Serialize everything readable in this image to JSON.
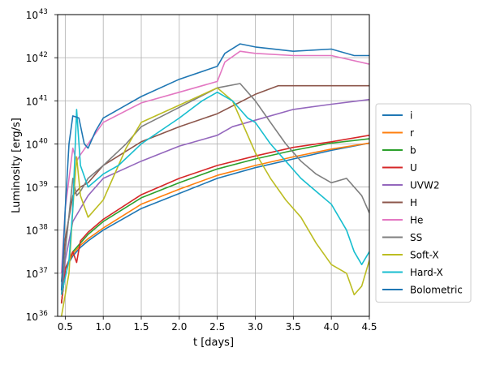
{
  "chart_data": {
    "type": "line",
    "title": "",
    "xlabel": "t [days]",
    "ylabel": "Luminosity [erg/s]",
    "xlim": [
      0.4,
      4.5
    ],
    "ylim_log10": [
      36,
      43
    ],
    "yscale": "log",
    "grid": true,
    "legend_position": "outside-right",
    "x_ticks": [
      {
        "value": 0.5,
        "label": "0.5"
      },
      {
        "value": 1.0,
        "label": "1.0"
      },
      {
        "value": 1.5,
        "label": "1.5"
      },
      {
        "value": 2.0,
        "label": "2.0"
      },
      {
        "value": 2.5,
        "label": "2.5"
      },
      {
        "value": 3.0,
        "label": "3.0"
      },
      {
        "value": 3.5,
        "label": "3.5"
      },
      {
        "value": 4.0,
        "label": "4.0"
      },
      {
        "value": 4.5,
        "label": "4.5"
      }
    ],
    "y_ticks": [
      {
        "exp": 36,
        "base": "10",
        "sup": "36"
      },
      {
        "exp": 37,
        "base": "10",
        "sup": "37"
      },
      {
        "exp": 38,
        "base": "10",
        "sup": "38"
      },
      {
        "exp": 39,
        "base": "10",
        "sup": "39"
      },
      {
        "exp": 40,
        "base": "10",
        "sup": "40"
      },
      {
        "exp": 41,
        "base": "10",
        "sup": "41"
      },
      {
        "exp": 42,
        "base": "10",
        "sup": "42"
      },
      {
        "exp": 43,
        "base": "10",
        "sup": "43"
      }
    ],
    "series": [
      {
        "name": "i",
        "color": "#1f77b4",
        "points": [
          [
            0.45,
            36.3
          ],
          [
            0.5,
            37.1
          ],
          [
            0.6,
            37.4
          ],
          [
            0.7,
            37.6
          ],
          [
            0.8,
            37.75
          ],
          [
            1.0,
            38.0
          ],
          [
            1.5,
            38.5
          ],
          [
            2.0,
            38.85
          ],
          [
            2.5,
            39.2
          ],
          [
            3.0,
            39.45
          ],
          [
            3.5,
            39.65
          ],
          [
            4.0,
            39.85
          ],
          [
            4.5,
            40.02
          ]
        ]
      },
      {
        "name": "r",
        "color": "#ff7f0e",
        "points": [
          [
            0.45,
            36.3
          ],
          [
            0.5,
            37.1
          ],
          [
            0.6,
            37.45
          ],
          [
            0.7,
            37.65
          ],
          [
            0.8,
            37.8
          ],
          [
            1.0,
            38.05
          ],
          [
            1.5,
            38.6
          ],
          [
            2.0,
            38.95
          ],
          [
            2.5,
            39.27
          ],
          [
            3.0,
            39.5
          ],
          [
            3.5,
            39.7
          ],
          [
            4.0,
            39.88
          ],
          [
            4.5,
            40.02
          ]
        ]
      },
      {
        "name": "b",
        "color": "#2ca02c",
        "points": [
          [
            0.45,
            36.3
          ],
          [
            0.5,
            37.1
          ],
          [
            0.6,
            37.5
          ],
          [
            0.7,
            37.7
          ],
          [
            0.8,
            37.9
          ],
          [
            1.0,
            38.2
          ],
          [
            1.5,
            38.75
          ],
          [
            2.0,
            39.1
          ],
          [
            2.5,
            39.42
          ],
          [
            3.0,
            39.65
          ],
          [
            3.5,
            39.85
          ],
          [
            4.0,
            40.02
          ],
          [
            4.5,
            40.12
          ]
        ]
      },
      {
        "name": "U",
        "color": "#d62728",
        "points": [
          [
            0.45,
            36.3
          ],
          [
            0.5,
            37.1
          ],
          [
            0.6,
            37.5
          ],
          [
            0.65,
            37.25
          ],
          [
            0.7,
            37.75
          ],
          [
            0.8,
            37.95
          ],
          [
            1.0,
            38.25
          ],
          [
            1.5,
            38.82
          ],
          [
            2.0,
            39.2
          ],
          [
            2.5,
            39.5
          ],
          [
            3.0,
            39.72
          ],
          [
            3.5,
            39.92
          ],
          [
            4.0,
            40.05
          ],
          [
            4.5,
            40.2
          ]
        ]
      },
      {
        "name": "UVW2",
        "color": "#9467bd",
        "points": [
          [
            0.45,
            36.5
          ],
          [
            0.5,
            37.3
          ],
          [
            0.6,
            38.2
          ],
          [
            0.7,
            38.5
          ],
          [
            0.8,
            38.8
          ],
          [
            1.0,
            39.2
          ],
          [
            1.5,
            39.6
          ],
          [
            2.0,
            39.95
          ],
          [
            2.5,
            40.2
          ],
          [
            2.7,
            40.4
          ],
          [
            3.0,
            40.55
          ],
          [
            3.5,
            40.8
          ],
          [
            4.0,
            40.92
          ],
          [
            4.5,
            41.03
          ]
        ]
      },
      {
        "name": "H",
        "color": "#8c564b",
        "points": [
          [
            0.45,
            36.8
          ],
          [
            0.5,
            37.8
          ],
          [
            0.6,
            38.8
          ],
          [
            0.7,
            39.0
          ],
          [
            0.8,
            39.1
          ],
          [
            1.0,
            39.5
          ],
          [
            1.5,
            40.05
          ],
          [
            2.0,
            40.4
          ],
          [
            2.5,
            40.7
          ],
          [
            3.0,
            41.15
          ],
          [
            3.3,
            41.35
          ],
          [
            3.5,
            41.35
          ],
          [
            4.0,
            41.35
          ],
          [
            4.5,
            41.35
          ]
        ]
      },
      {
        "name": "He",
        "color": "#e377c2",
        "points": [
          [
            0.45,
            37.0
          ],
          [
            0.5,
            38.5
          ],
          [
            0.6,
            39.9
          ],
          [
            0.65,
            39.6
          ],
          [
            0.7,
            39.75
          ],
          [
            0.8,
            40.0
          ],
          [
            1.0,
            40.5
          ],
          [
            1.5,
            40.95
          ],
          [
            2.0,
            41.2
          ],
          [
            2.5,
            41.45
          ],
          [
            2.6,
            41.9
          ],
          [
            2.8,
            42.15
          ],
          [
            3.0,
            42.1
          ],
          [
            3.5,
            42.05
          ],
          [
            4.0,
            42.05
          ],
          [
            4.5,
            41.85
          ]
        ]
      },
      {
        "name": "SS",
        "color": "#7f7f7f",
        "points": [
          [
            0.45,
            36.5
          ],
          [
            0.5,
            37.5
          ],
          [
            0.6,
            39.2
          ],
          [
            0.65,
            38.8
          ],
          [
            0.7,
            38.9
          ],
          [
            0.8,
            39.2
          ],
          [
            1.0,
            39.5
          ],
          [
            1.3,
            40.0
          ],
          [
            1.5,
            40.4
          ],
          [
            2.0,
            40.85
          ],
          [
            2.5,
            41.3
          ],
          [
            2.8,
            41.4
          ],
          [
            3.0,
            41.0
          ],
          [
            3.2,
            40.5
          ],
          [
            3.4,
            40.0
          ],
          [
            3.6,
            39.6
          ],
          [
            3.8,
            39.3
          ],
          [
            4.0,
            39.1
          ],
          [
            4.2,
            39.2
          ],
          [
            4.4,
            38.8
          ],
          [
            4.5,
            38.4
          ]
        ]
      },
      {
        "name": "Soft-X",
        "color": "#bcbd22",
        "points": [
          [
            0.45,
            36.0
          ],
          [
            0.55,
            37.0
          ],
          [
            0.6,
            38.5
          ],
          [
            0.65,
            39.7
          ],
          [
            0.7,
            38.8
          ],
          [
            0.8,
            38.3
          ],
          [
            1.0,
            38.7
          ],
          [
            1.2,
            39.5
          ],
          [
            1.3,
            39.9
          ],
          [
            1.5,
            40.5
          ],
          [
            2.0,
            40.9
          ],
          [
            2.5,
            41.3
          ],
          [
            2.7,
            41.0
          ],
          [
            2.8,
            40.6
          ],
          [
            3.0,
            39.8
          ],
          [
            3.2,
            39.2
          ],
          [
            3.4,
            38.7
          ],
          [
            3.6,
            38.3
          ],
          [
            3.8,
            37.7
          ],
          [
            4.0,
            37.2
          ],
          [
            4.2,
            37.0
          ],
          [
            4.3,
            36.5
          ],
          [
            4.4,
            36.7
          ],
          [
            4.5,
            37.3
          ]
        ]
      },
      {
        "name": "Hard-X",
        "color": "#17becf",
        "points": [
          [
            0.45,
            36.5
          ],
          [
            0.55,
            37.3
          ],
          [
            0.6,
            38.5
          ],
          [
            0.65,
            40.8
          ],
          [
            0.7,
            39.5
          ],
          [
            0.8,
            39.0
          ],
          [
            1.0,
            39.3
          ],
          [
            1.2,
            39.5
          ],
          [
            1.5,
            40.0
          ],
          [
            2.0,
            40.6
          ],
          [
            2.3,
            41.0
          ],
          [
            2.5,
            41.2
          ],
          [
            2.7,
            41.0
          ],
          [
            2.9,
            40.6
          ],
          [
            3.0,
            40.5
          ],
          [
            3.2,
            40.0
          ],
          [
            3.4,
            39.6
          ],
          [
            3.6,
            39.2
          ],
          [
            3.8,
            38.9
          ],
          [
            4.0,
            38.6
          ],
          [
            4.2,
            38.0
          ],
          [
            4.3,
            37.5
          ],
          [
            4.4,
            37.2
          ],
          [
            4.5,
            37.5
          ]
        ]
      },
      {
        "name": "Bolometric",
        "color": "#1f77b4",
        "points": [
          [
            0.45,
            36.6
          ],
          [
            0.5,
            38.5
          ],
          [
            0.55,
            40.0
          ],
          [
            0.6,
            40.65
          ],
          [
            0.68,
            40.6
          ],
          [
            0.75,
            40.0
          ],
          [
            0.8,
            39.9
          ],
          [
            0.9,
            40.3
          ],
          [
            1.0,
            40.6
          ],
          [
            1.5,
            41.1
          ],
          [
            2.0,
            41.5
          ],
          [
            2.5,
            41.8
          ],
          [
            2.6,
            42.1
          ],
          [
            2.8,
            42.32
          ],
          [
            3.0,
            42.25
          ],
          [
            3.5,
            42.15
          ],
          [
            4.0,
            42.2
          ],
          [
            4.3,
            42.05
          ],
          [
            4.5,
            42.05
          ]
        ]
      }
    ]
  }
}
